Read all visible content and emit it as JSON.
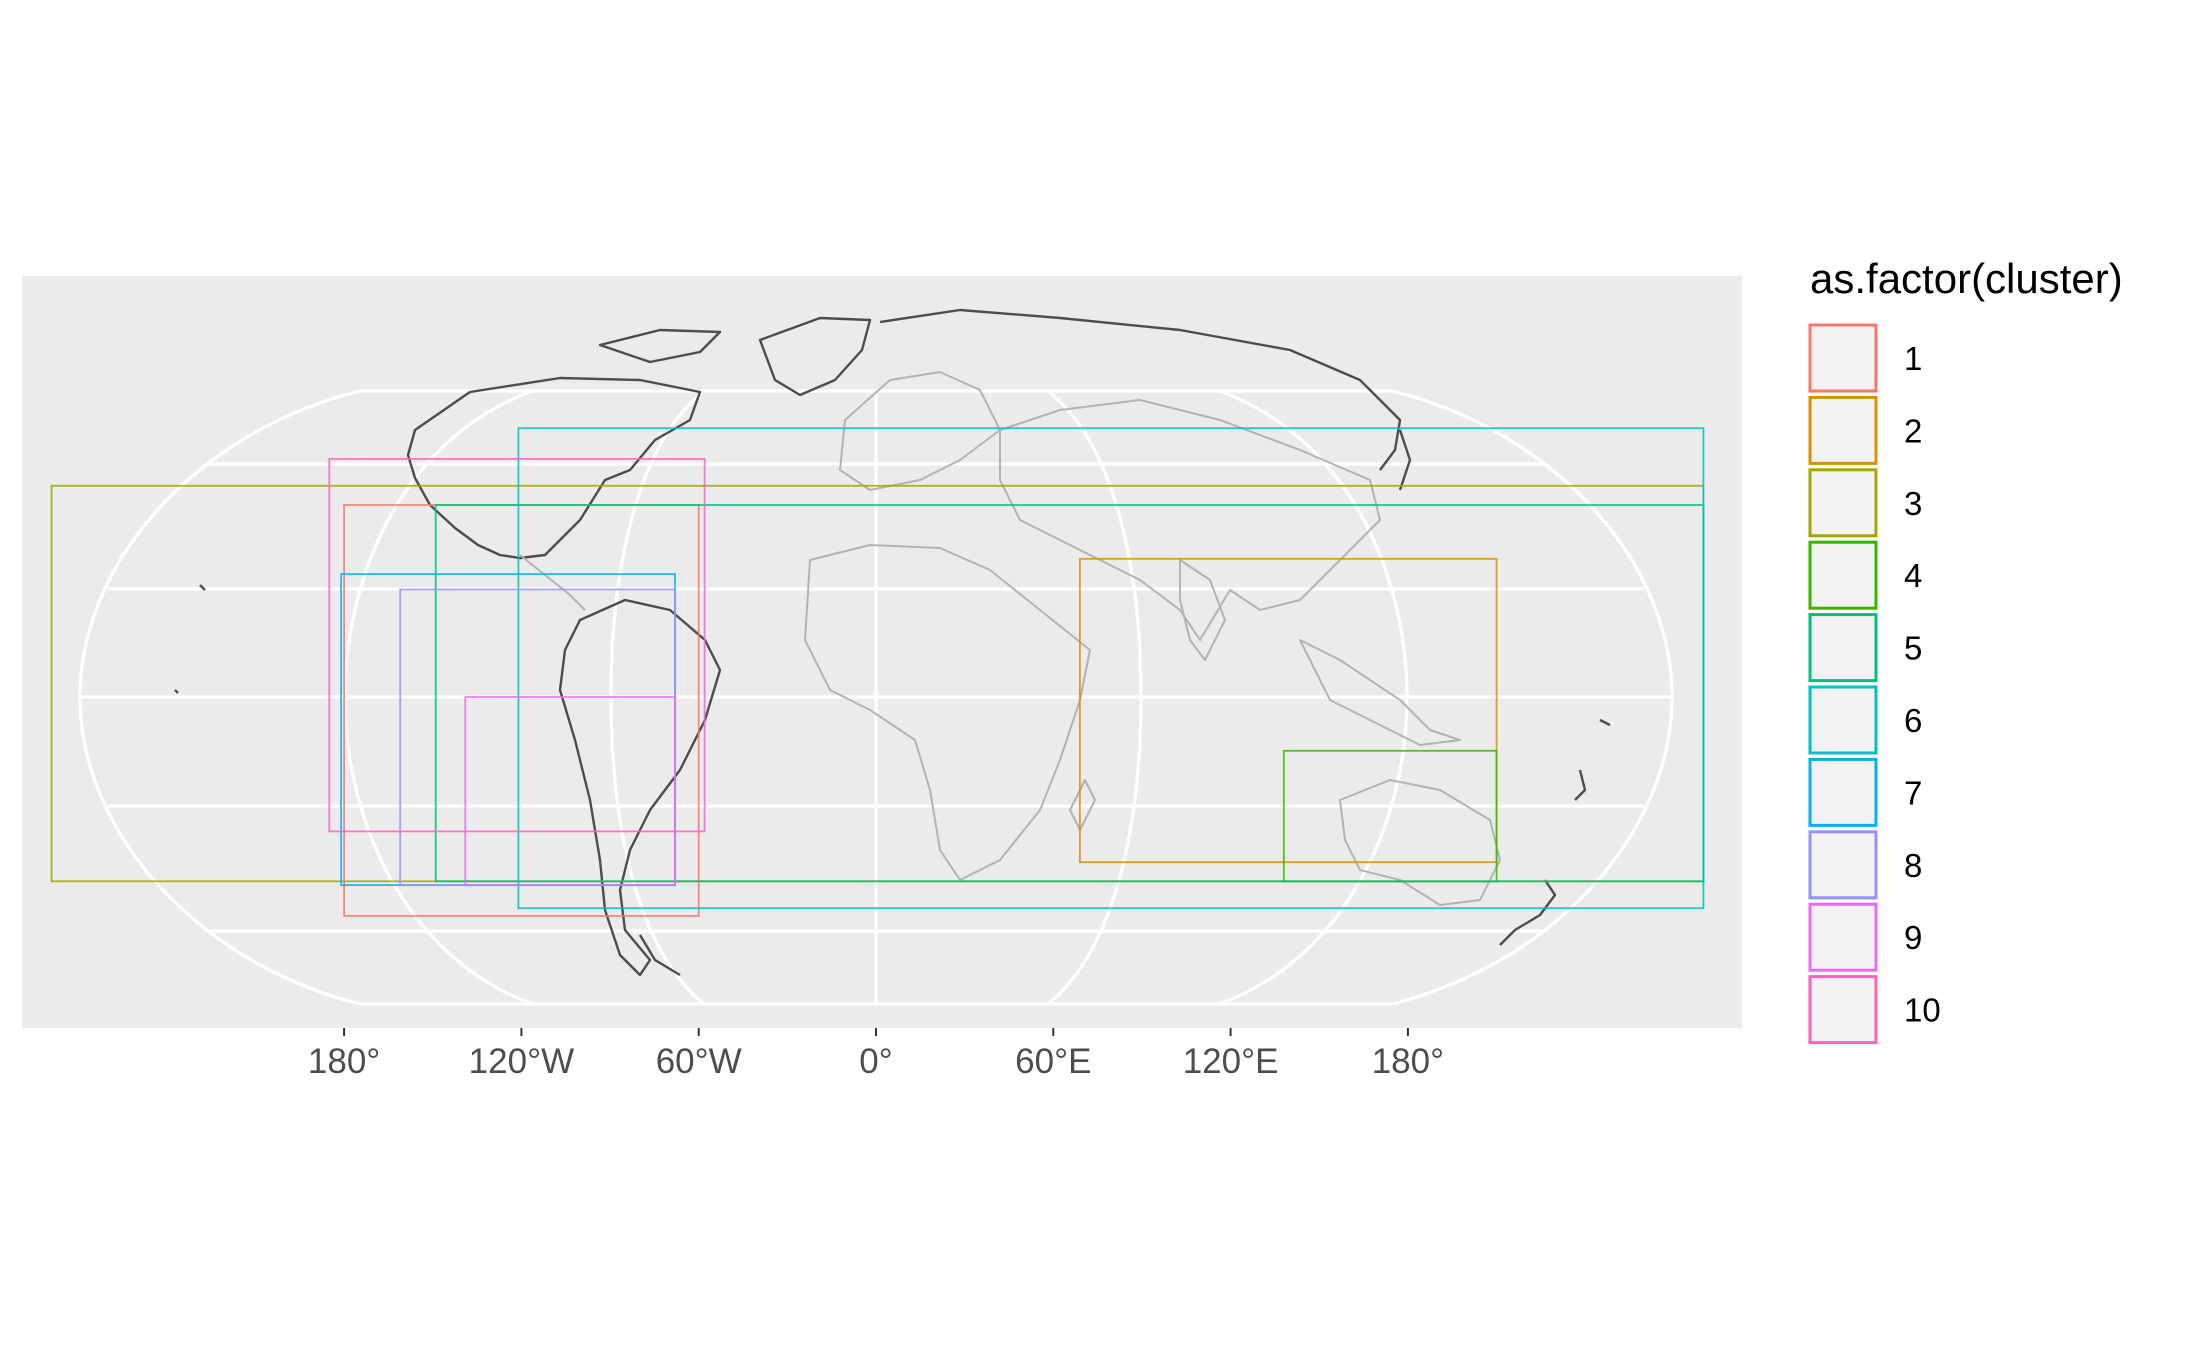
{
  "map": {
    "x_tick_labels": [
      "180°",
      "120°W",
      "60°W",
      "0°",
      "60°E",
      "120°E",
      "180°"
    ],
    "x_tick_lon": [
      -180,
      -120,
      -60,
      0,
      60,
      120,
      180
    ]
  },
  "legend": {
    "title": "as.factor(cluster)",
    "items": [
      {
        "label": "1",
        "color": "#F8766D"
      },
      {
        "label": "2",
        "color": "#D89000"
      },
      {
        "label": "3",
        "color": "#A3A500"
      },
      {
        "label": "4",
        "color": "#39B600"
      },
      {
        "label": "5",
        "color": "#00BF7D"
      },
      {
        "label": "6",
        "color": "#00BFC4"
      },
      {
        "label": "7",
        "color": "#00B0F6"
      },
      {
        "label": "8",
        "color": "#9590FF"
      },
      {
        "label": "9",
        "color": "#E76BF3"
      },
      {
        "label": "10",
        "color": "#FF62BC"
      }
    ]
  },
  "chart_data": {
    "type": "map",
    "projection": "Robinson",
    "basemap": "world coastlines and country borders",
    "legend_title": "as.factor(cluster)",
    "x_tick_labels": [
      "180°",
      "120°W",
      "60°W",
      "0°",
      "60°E",
      "120°E",
      "180°"
    ],
    "clusters": [
      {
        "cluster": "1",
        "color": "#F8766D",
        "lon_min": -180,
        "lon_max": -60,
        "lat_min": -57,
        "lat_max": 50
      },
      {
        "cluster": "2",
        "color": "#D89000",
        "lon_min": 69,
        "lon_max": 210,
        "lat_min": -43,
        "lat_max": 36
      },
      {
        "cluster": "3",
        "color": "#A3A500",
        "lon_min": -279,
        "lon_max": 280,
        "lat_min": -48,
        "lat_max": 55
      },
      {
        "cluster": "4",
        "color": "#39B600",
        "lon_min": 138,
        "lon_max": 210,
        "lat_min": -48,
        "lat_max": -14
      },
      {
        "cluster": "5",
        "color": "#00BF7D",
        "lon_min": -149,
        "lon_max": 280,
        "lat_min": -48,
        "lat_max": 50
      },
      {
        "cluster": "6",
        "color": "#00BFC4",
        "lon_min": -121,
        "lon_max": 280,
        "lat_min": -55,
        "lat_max": 70
      },
      {
        "cluster": "7",
        "color": "#00B0F6",
        "lon_min": -181,
        "lon_max": -68,
        "lat_min": -49,
        "lat_max": 32
      },
      {
        "cluster": "8",
        "color": "#9590FF",
        "lon_min": -161,
        "lon_max": -68,
        "lat_min": -49,
        "lat_max": 28
      },
      {
        "cluster": "9",
        "color": "#E76BF3",
        "lon_min": -139,
        "lon_max": -68,
        "lat_min": -49,
        "lat_max": 0
      },
      {
        "cluster": "10",
        "color": "#FF62BC",
        "lon_min": -185,
        "lon_max": -58,
        "lat_min": -35,
        "lat_max": 62
      }
    ],
    "grid": true,
    "legend_position": "right"
  }
}
